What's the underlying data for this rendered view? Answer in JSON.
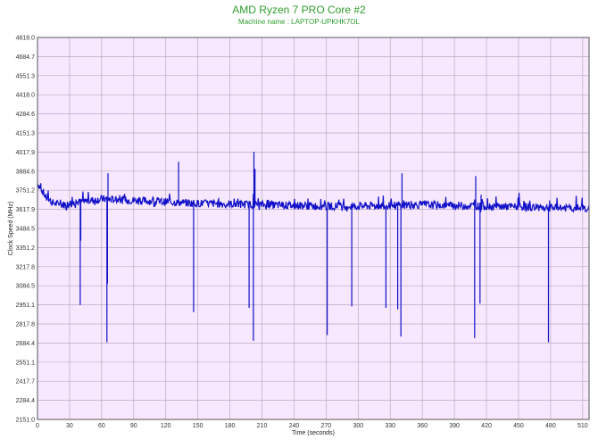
{
  "chart_data": {
    "type": "line",
    "title": "AMD Ryzen 7 PRO Core #2",
    "subtitle": "Machine name : LAPTOP-UPKHK7OL",
    "xlabel": "Time (seconds)",
    "ylabel": "Clock Speed (MHz)",
    "xlim": [
      0,
      516
    ],
    "ylim": [
      2151.0,
      4818.0
    ],
    "x_ticks": [
      0,
      30,
      60,
      90,
      120,
      150,
      180,
      210,
      240,
      270,
      300,
      330,
      360,
      390,
      420,
      450,
      480,
      510
    ],
    "y_ticks": [
      "2151.0",
      "2284.4",
      "2417.7",
      "2551.1",
      "2684.4",
      "2817.8",
      "2951.1",
      "3084.5",
      "3217.8",
      "3351.2",
      "3484.5",
      "3617.9",
      "3751.2",
      "3884.6",
      "4017.9",
      "4151.3",
      "4284.6",
      "4418.0",
      "4551.3",
      "4684.7",
      "4818.0"
    ],
    "grid": true,
    "background": "#f8e8ff",
    "grid_color": "#b8a8c4",
    "line_color": "#1010c8",
    "series": [
      {
        "baseline": [
          [
            0,
            3800
          ],
          [
            3,
            3770
          ],
          [
            8,
            3700
          ],
          [
            15,
            3660
          ],
          [
            25,
            3650
          ],
          [
            40,
            3670
          ],
          [
            60,
            3690
          ],
          [
            90,
            3680
          ],
          [
            120,
            3670
          ],
          [
            150,
            3660
          ],
          [
            180,
            3655
          ],
          [
            210,
            3650
          ],
          [
            240,
            3645
          ],
          [
            270,
            3640
          ],
          [
            300,
            3640
          ],
          [
            330,
            3645
          ],
          [
            360,
            3650
          ],
          [
            390,
            3645
          ],
          [
            420,
            3640
          ],
          [
            450,
            3635
          ],
          [
            480,
            3630
          ],
          [
            516,
            3625
          ]
        ],
        "spikes": [
          [
            40,
            2950
          ],
          [
            40.5,
            3400
          ],
          [
            65,
            2690
          ],
          [
            66,
            3870
          ],
          [
            65.5,
            3100
          ],
          [
            132,
            3950
          ],
          [
            146,
            2900
          ],
          [
            198,
            2930
          ],
          [
            202,
            2700
          ],
          [
            202.5,
            4020
          ],
          [
            203.5,
            3900
          ],
          [
            271,
            2740
          ],
          [
            294,
            2940
          ],
          [
            326,
            2930
          ],
          [
            337,
            2920
          ],
          [
            340,
            2730
          ],
          [
            341,
            3870
          ],
          [
            409,
            2720
          ],
          [
            410,
            3850
          ],
          [
            414,
            2960
          ],
          [
            415,
            3720
          ],
          [
            478,
            2690
          ],
          [
            479,
            3680
          ]
        ]
      }
    ]
  }
}
